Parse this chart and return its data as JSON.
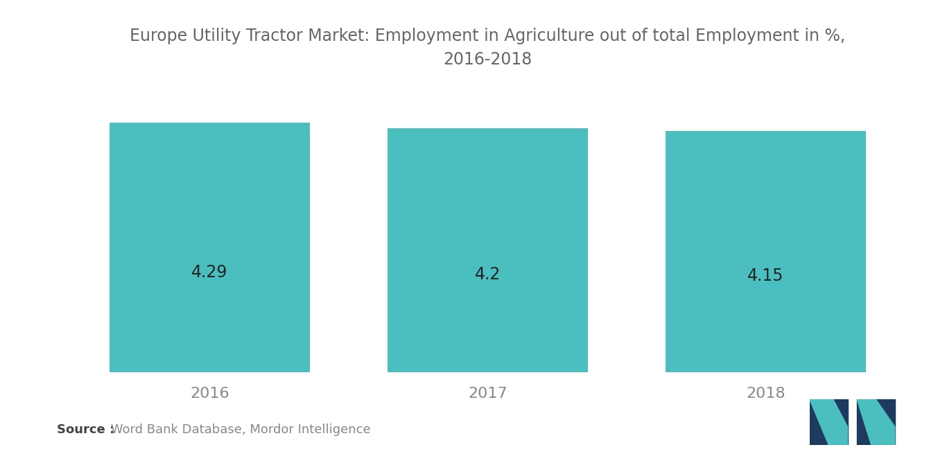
{
  "title_line1": "Europe Utility Tractor Market: Employment in Agriculture out of total Employment in %,",
  "title_line2": "2016-2018",
  "categories": [
    "2016",
    "2017",
    "2018"
  ],
  "values": [
    4.29,
    4.2,
    4.15
  ],
  "bar_color": "#4BBFBF",
  "label_color": "#222222",
  "title_color": "#666666",
  "background_color": "#ffffff",
  "source_bold": "Source :",
  "source_normal": " Word Bank Database, Mordor Intelligence",
  "source_color_bold": "#444444",
  "source_color_normal": "#888888",
  "ylim": [
    0,
    5.0
  ],
  "label_fontsize": 17,
  "title_fontsize": 17,
  "xtick_fontsize": 16,
  "source_fontsize": 13,
  "bar_width": 0.72,
  "logo_teal": "#4BBFBF",
  "logo_navy": "#1e3a5f"
}
